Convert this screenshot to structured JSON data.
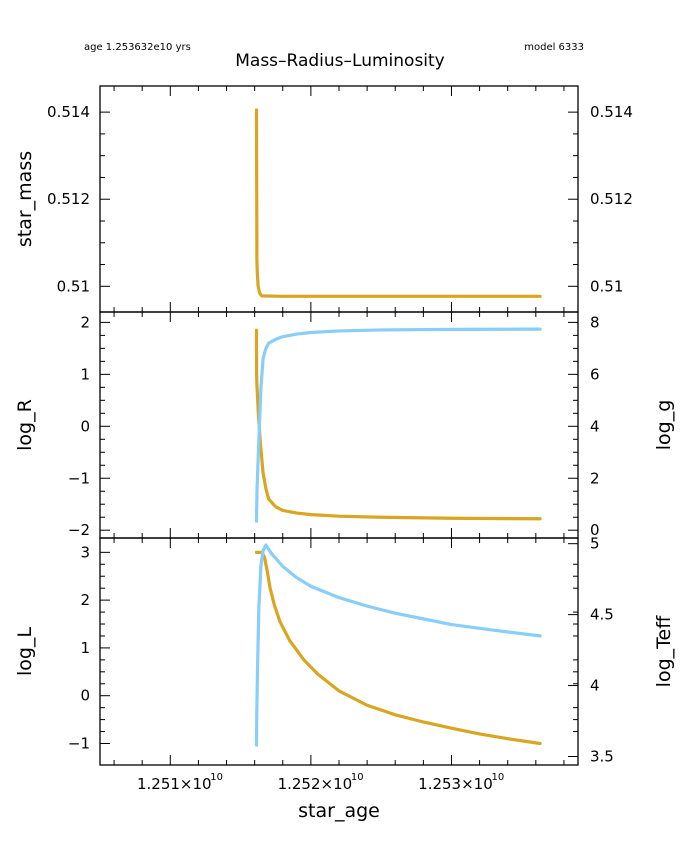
{
  "header": {
    "age_text": "age 1.253632e10 yrs",
    "title": "Mass–Radius–Luminosity",
    "model_text": "model 6333"
  },
  "colors": {
    "left_series": "#daa520",
    "right_series": "#87cefa",
    "axes": "#000000",
    "background": "#ffffff"
  },
  "chart_data": [
    {
      "type": "line",
      "panel": "top",
      "ylabel": "star_mass",
      "ylabel_color": "#daa520",
      "xlim": [
        12505000000,
        12539000000
      ],
      "ylim": [
        50941,
        51460
      ],
      "yscale_divisor": 100000,
      "y_ticks": [
        51400,
        51200,
        51000
      ],
      "y_tick_labels": [
        "0.514",
        "0.512",
        "0.51"
      ],
      "y_ticks_right_labels": [
        "0.514",
        "0.512",
        "0.51"
      ],
      "series": [
        {
          "axis": "left",
          "color": "#daa520",
          "points": [
            [
              12516130000,
              51405
            ],
            [
              12516140000,
              51300
            ],
            [
              12516150000,
              51180
            ],
            [
              12516160000,
              51060
            ],
            [
              12516190000,
              51030
            ],
            [
              12516250000,
              51000
            ],
            [
              12516350000,
              50985
            ],
            [
              12516500000,
              50978
            ],
            [
              12518000000,
              50977
            ],
            [
              12525000000,
              50977
            ],
            [
              12536300000,
              50977
            ]
          ]
        }
      ]
    },
    {
      "type": "line",
      "panel": "middle",
      "ylabel": "log_R",
      "ylabel_color": "#daa520",
      "ylabel_right": "log_g",
      "ylabel_right_color": "#87cefa",
      "xlim": [
        12505000000,
        12539000000
      ],
      "ylim": [
        -2.15,
        2.2
      ],
      "ylim_right": [
        -0.3,
        8.4
      ],
      "y_ticks": [
        2,
        1,
        0,
        -1,
        -2
      ],
      "y_tick_labels": [
        "2",
        "1",
        "0",
        "−1",
        "−2"
      ],
      "y_ticks_right": [
        8,
        6,
        4,
        2,
        0
      ],
      "y_tick_labels_right": [
        "8",
        "6",
        "4",
        "2",
        "0"
      ],
      "series": [
        {
          "axis": "left",
          "color": "#daa520",
          "points": [
            [
              12516130000,
              1.85
            ],
            [
              12516140000,
              1.0
            ],
            [
              12516160000,
              0.8
            ],
            [
              12516200000,
              0.6
            ],
            [
              12516250000,
              0.3
            ],
            [
              12516400000,
              -0.3
            ],
            [
              12516600000,
              -0.9
            ],
            [
              12516800000,
              -1.2
            ],
            [
              12517000000,
              -1.4
            ],
            [
              12517500000,
              -1.55
            ],
            [
              12518000000,
              -1.62
            ],
            [
              12519000000,
              -1.67
            ],
            [
              12520000000,
              -1.7
            ],
            [
              12522000000,
              -1.73
            ],
            [
              12525000000,
              -1.75
            ],
            [
              12530000000,
              -1.77
            ],
            [
              12536300000,
              -1.78
            ]
          ]
        },
        {
          "axis": "right",
          "color": "#87cefa",
          "points": [
            [
              12516130000,
              0.35
            ],
            [
              12516150000,
              1.0
            ],
            [
              12516170000,
              1.6
            ],
            [
              12516220000,
              2.3
            ],
            [
              12516300000,
              3.5
            ],
            [
              12516450000,
              5.5
            ],
            [
              12516600000,
              6.6
            ],
            [
              12516800000,
              7.0
            ],
            [
              12517000000,
              7.2
            ],
            [
              12517500000,
              7.35
            ],
            [
              12518000000,
              7.45
            ],
            [
              12519000000,
              7.55
            ],
            [
              12520000000,
              7.61
            ],
            [
              12522000000,
              7.67
            ],
            [
              12525000000,
              7.71
            ],
            [
              12530000000,
              7.73
            ],
            [
              12536300000,
              7.74
            ]
          ]
        }
      ]
    },
    {
      "type": "line",
      "panel": "bottom",
      "ylabel": "log_L",
      "ylabel_color": "#daa520",
      "ylabel_right": "log_Teff",
      "ylabel_right_color": "#87cefa",
      "xlabel": "star_age",
      "xlim": [
        12505000000,
        12539000000
      ],
      "x_ticks": [
        12510000000,
        12520000000,
        12530000000
      ],
      "x_tick_labels": [
        "1.251×10",
        "1.252×10",
        "1.253×10"
      ],
      "x_tick_exponent": "10",
      "ylim": [
        -1.45,
        3.3
      ],
      "ylim_right": [
        3.44,
        5.04
      ],
      "y_ticks": [
        3,
        2,
        1,
        0,
        -1
      ],
      "y_tick_labels": [
        "3",
        "2",
        "1",
        "0",
        "−1"
      ],
      "y_ticks_right": [
        5,
        4.5,
        4,
        3.5
      ],
      "y_tick_labels_right": [
        "5",
        "4.5",
        "4",
        "3.5"
      ],
      "series": [
        {
          "axis": "left",
          "color": "#daa520",
          "points": [
            [
              12516130000,
              3.0
            ],
            [
              12516500000,
              3.0
            ],
            [
              12516700000,
              2.9
            ],
            [
              12516900000,
              2.6
            ],
            [
              12517100000,
              2.25
            ],
            [
              12517400000,
              1.9
            ],
            [
              12517800000,
              1.55
            ],
            [
              12518500000,
              1.15
            ],
            [
              12519500000,
              0.75
            ],
            [
              12520500000,
              0.45
            ],
            [
              12522000000,
              0.1
            ],
            [
              12524000000,
              -0.2
            ],
            [
              12526000000,
              -0.4
            ],
            [
              12528000000,
              -0.55
            ],
            [
              12530000000,
              -0.68
            ],
            [
              12532000000,
              -0.8
            ],
            [
              12534000000,
              -0.9
            ],
            [
              12536300000,
              -1.0
            ]
          ]
        },
        {
          "axis": "right",
          "color": "#87cefa",
          "points": [
            [
              12516130000,
              3.58
            ],
            [
              12516150000,
              3.8
            ],
            [
              12516200000,
              4.1
            ],
            [
              12516300000,
              4.55
            ],
            [
              12516450000,
              4.85
            ],
            [
              12516600000,
              4.95
            ],
            [
              12516800000,
              4.99
            ],
            [
              12517200000,
              4.93
            ],
            [
              12518000000,
              4.84
            ],
            [
              12519000000,
              4.76
            ],
            [
              12520000000,
              4.7
            ],
            [
              12522000000,
              4.62
            ],
            [
              12524000000,
              4.56
            ],
            [
              12526000000,
              4.51
            ],
            [
              12528000000,
              4.47
            ],
            [
              12530000000,
              4.43
            ],
            [
              12533000000,
              4.39
            ],
            [
              12536300000,
              4.35
            ]
          ]
        }
      ]
    }
  ]
}
